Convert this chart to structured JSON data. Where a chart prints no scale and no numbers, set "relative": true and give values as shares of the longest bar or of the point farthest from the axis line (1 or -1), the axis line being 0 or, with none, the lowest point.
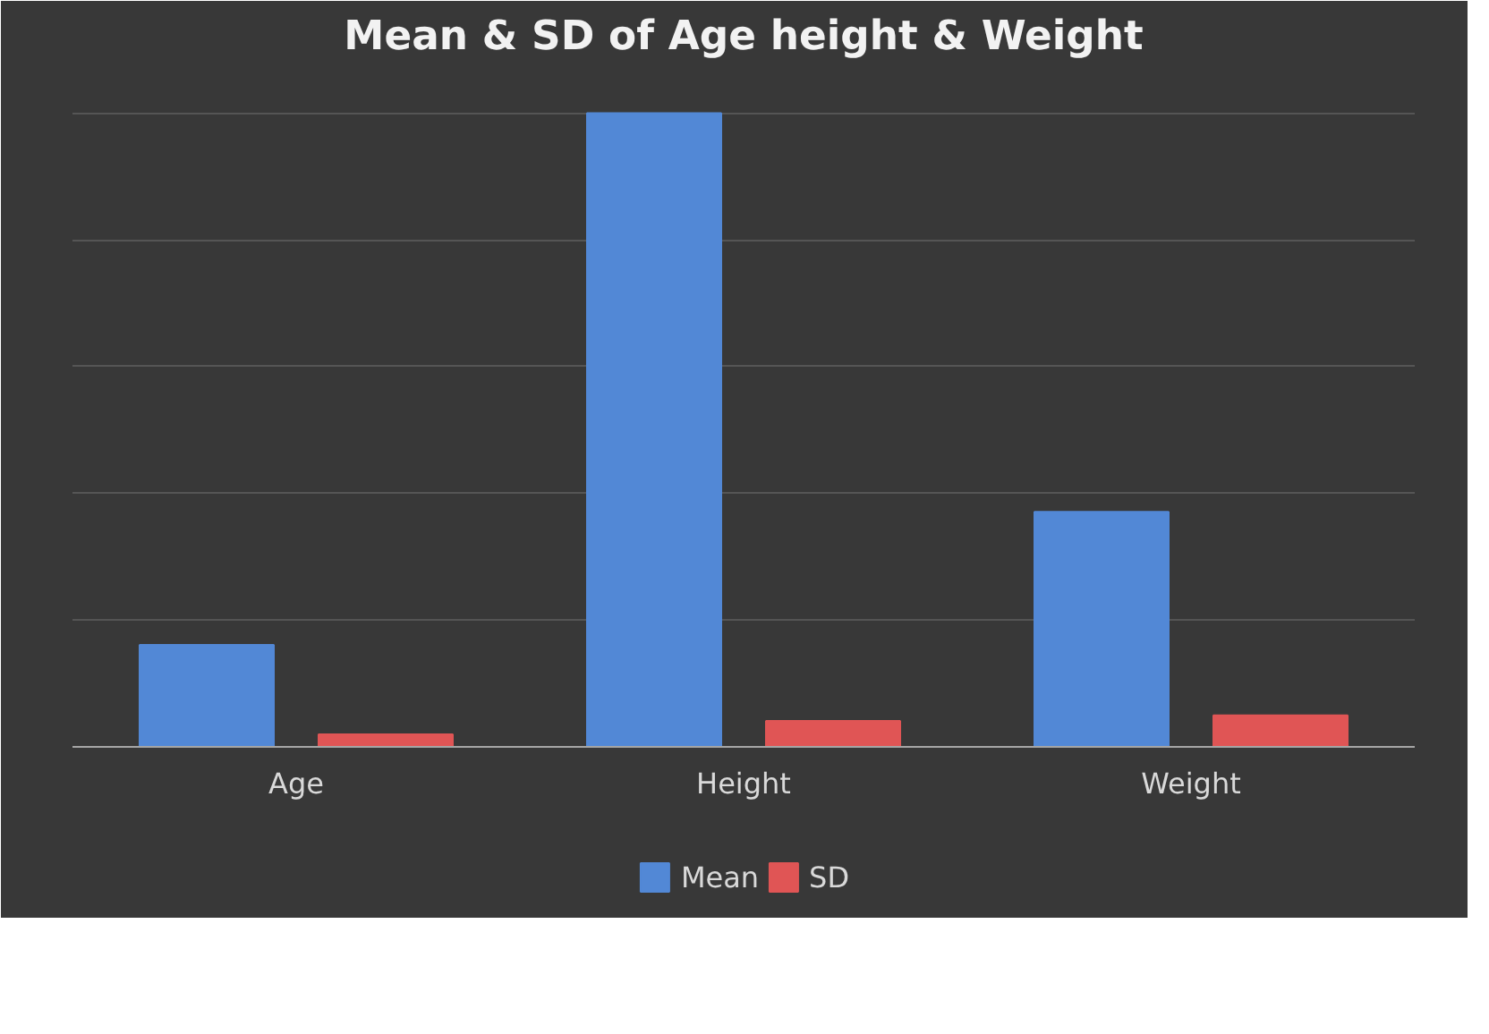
{
  "chart_data": {
    "type": "bar",
    "title": "Mean & SD of Age height & Weight",
    "categories": [
      "Age",
      "Height",
      "Weight"
    ],
    "relative": true,
    "grid": "y",
    "legend": "bottom",
    "series": [
      {
        "name": "Mean",
        "color": "#5288d6",
        "values": [
          0.161,
          1,
          0.371
        ]
      },
      {
        "name": "SD",
        "color": "#e05555",
        "values": [
          0.02,
          0.041,
          0.05
        ]
      }
    ]
  }
}
